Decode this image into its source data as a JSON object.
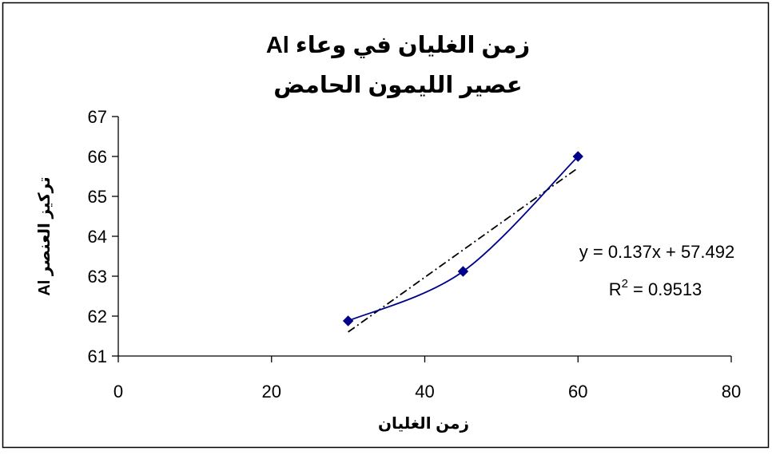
{
  "chart_data": {
    "type": "scatter",
    "title_lines": [
      "زمن الغليان في وعاء Al",
      "عصير الليمون الحامض"
    ],
    "xlabel": "زمن الغليان",
    "ylabel": "تركيز العنصر Al",
    "xlim": [
      0,
      80
    ],
    "ylim": [
      61,
      67
    ],
    "x_ticks": [
      0,
      20,
      40,
      60,
      80
    ],
    "y_ticks": [
      61,
      62,
      63,
      64,
      65,
      66,
      67
    ],
    "grid": false,
    "series": [
      {
        "x": [
          30,
          45,
          60
        ],
        "y": [
          61.88,
          63.12,
          66.0
        ],
        "line": "smooth",
        "color": "#00008b",
        "marker": "diamond"
      }
    ],
    "trendline": {
      "type": "linear",
      "slope": 0.137,
      "intercept": 57.492,
      "x_range": [
        30,
        60
      ],
      "style": "dash-dot",
      "color": "#000000",
      "equation_text": "y = 0.137x + 57.492",
      "r2_label": "R",
      "r2_sup": "2",
      "r2_value": " = 0.9513"
    }
  }
}
